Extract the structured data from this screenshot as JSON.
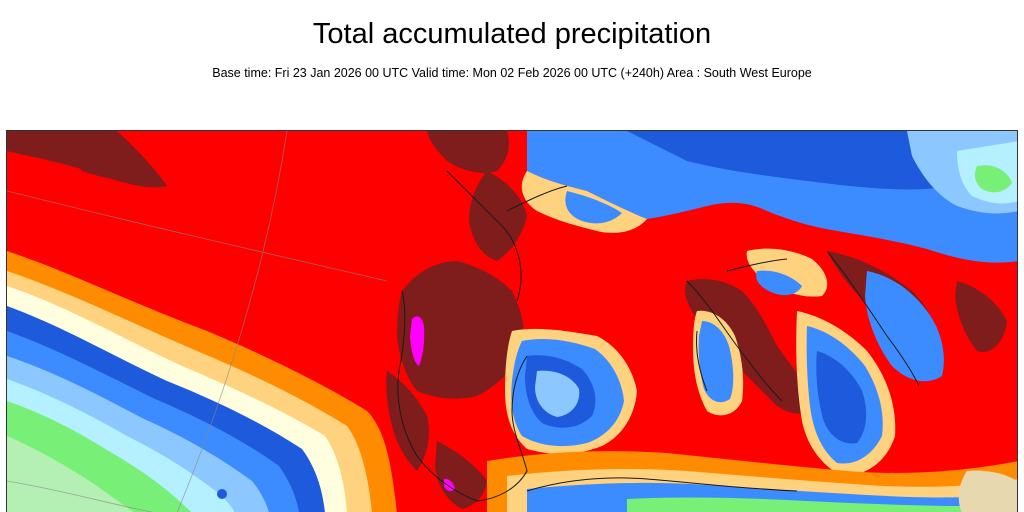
{
  "header": {
    "title": "Total accumulated precipitation",
    "subtitle": "Base time: Fri 23 Jan 2026 00 UTC Valid time: Mon 02 Feb 2026 00 UTC (+240h) Area : South West Europe"
  },
  "colors": {
    "very_heavy": "#7f1d1d",
    "heavy": "#ff0000",
    "moderate_high": "#ff8c00",
    "moderate": "#ffd27f",
    "light_high": "#ffffe0",
    "blue_dark": "#1e5adc",
    "blue": "#3c8cff",
    "blue_light": "#8cc8ff",
    "cyan_light": "#b4f0ff",
    "green": "#78f078",
    "green_light": "#b4f0b4",
    "extreme": "#ff00ff",
    "land_tan": "#e8d8b0"
  }
}
